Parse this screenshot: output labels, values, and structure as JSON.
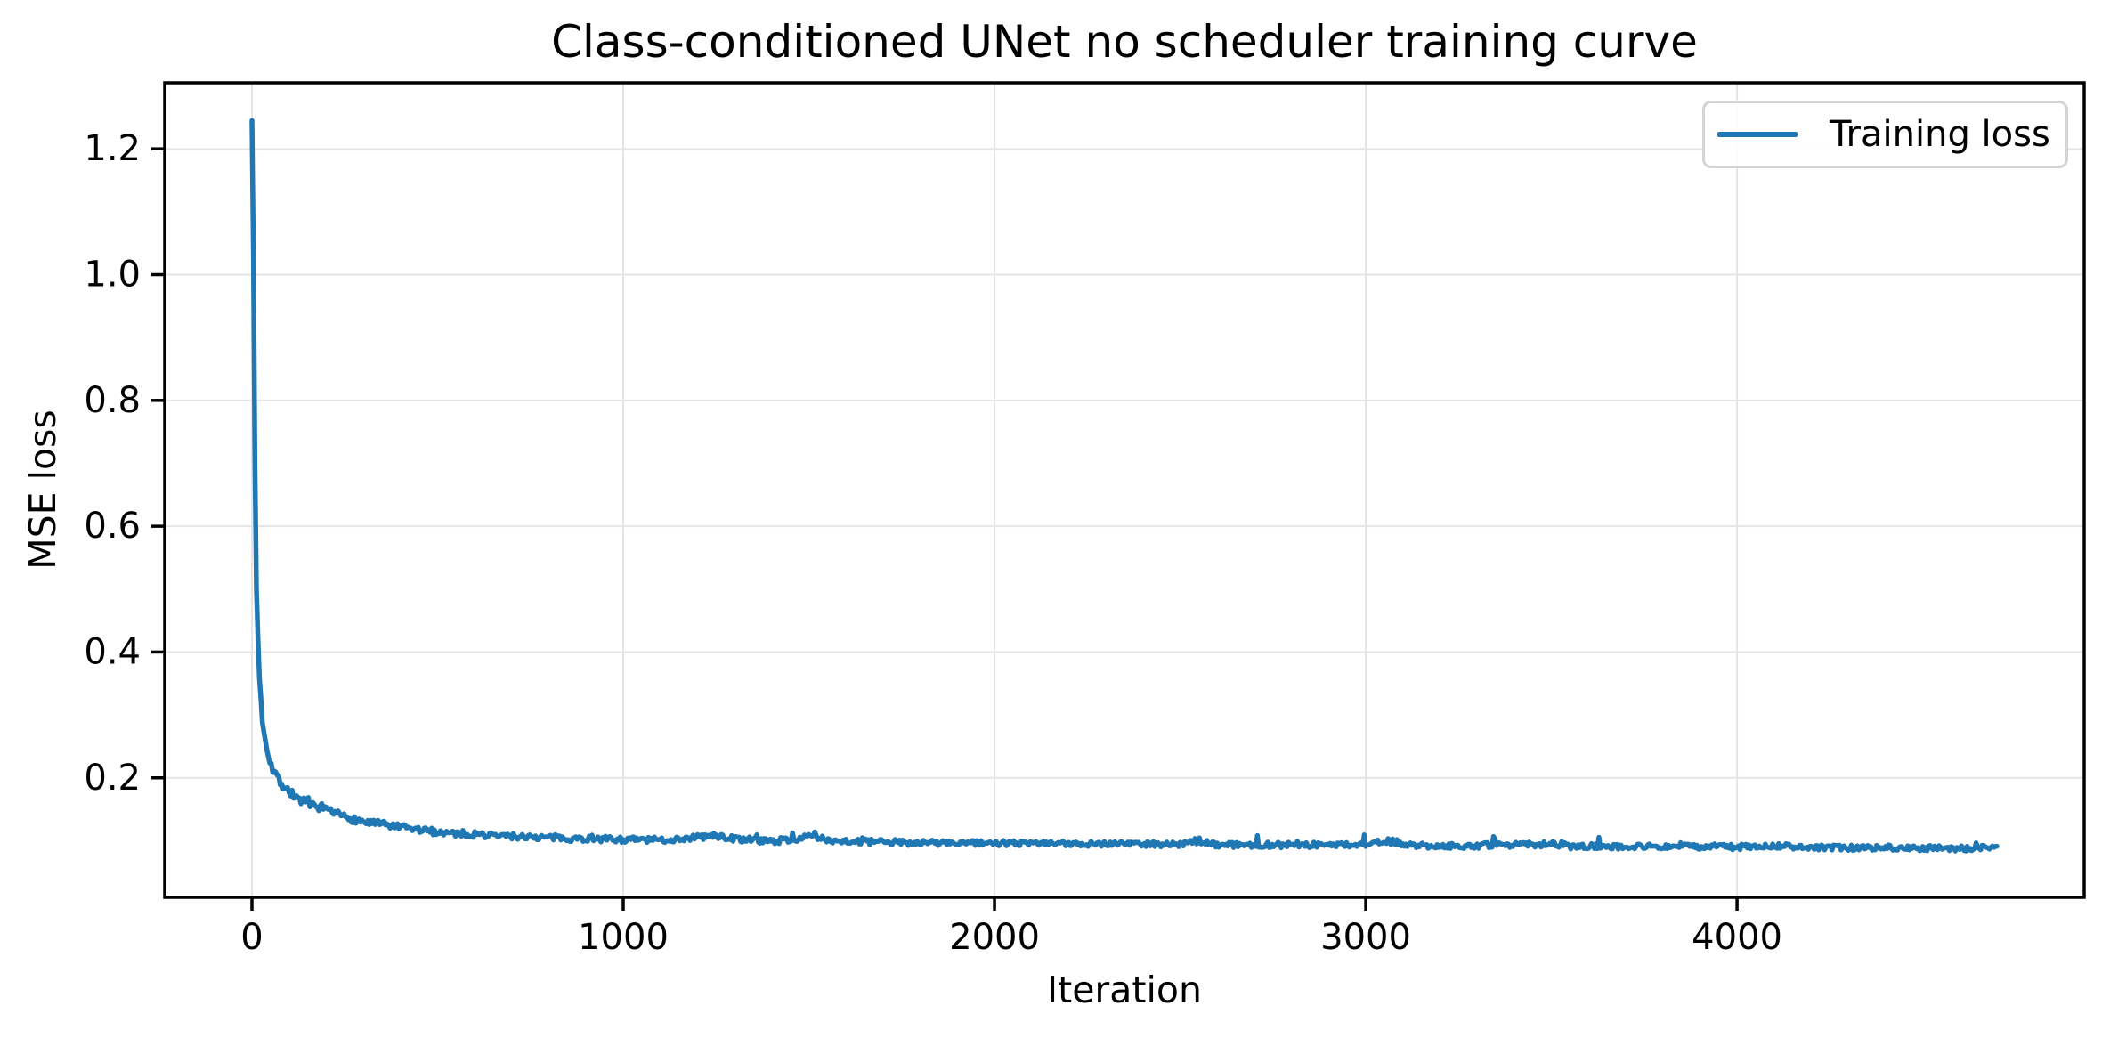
{
  "chart_data": {
    "type": "line",
    "title": "Class-conditioned UNet no scheduler training curve",
    "xlabel": "Iteration",
    "ylabel": "MSE loss",
    "grid": true,
    "legend": {
      "position": "upper right",
      "entries": [
        {
          "label": "Training loss",
          "color": "#1f77b4"
        }
      ]
    },
    "xlim": [
      -235,
      4935
    ],
    "ylim": [
      0.01,
      1.305
    ],
    "x_ticks": [
      0,
      1000,
      2000,
      3000,
      4000
    ],
    "x_tick_labels": [
      "0",
      "1000",
      "2000",
      "3000",
      "4000"
    ],
    "y_ticks": [
      0.2,
      0.4,
      0.6,
      0.8,
      1.0,
      1.2
    ],
    "y_tick_labels": [
      "0.2",
      "0.4",
      "0.6",
      "0.8",
      "1.0",
      "1.2"
    ],
    "colors": {
      "line": "#1f77b4",
      "grid": "#e5e5e5",
      "spine": "#000000",
      "text": "#000000",
      "legend_border": "#d4d4d4"
    },
    "series": [
      {
        "name": "Training loss",
        "color": "#1f77b4",
        "x_start": 0,
        "x_end": 4700,
        "x_step": 4,
        "initial_loss": 1.245,
        "final_loss": 0.089,
        "trend_anchors": [
          [
            0,
            1.245
          ],
          [
            3,
            1.1
          ],
          [
            5,
            0.95
          ],
          [
            7,
            0.78
          ],
          [
            9,
            0.62
          ],
          [
            12,
            0.5
          ],
          [
            15,
            0.44
          ],
          [
            20,
            0.36
          ],
          [
            25,
            0.31
          ],
          [
            30,
            0.285
          ],
          [
            40,
            0.25
          ],
          [
            50,
            0.225
          ],
          [
            60,
            0.21
          ],
          [
            75,
            0.195
          ],
          [
            90,
            0.185
          ],
          [
            110,
            0.173
          ],
          [
            130,
            0.165
          ],
          [
            160,
            0.155
          ],
          [
            200,
            0.147
          ],
          [
            250,
            0.138
          ],
          [
            300,
            0.13
          ],
          [
            350,
            0.126
          ],
          [
            400,
            0.121
          ],
          [
            450,
            0.117
          ],
          [
            500,
            0.114
          ],
          [
            600,
            0.11
          ],
          [
            700,
            0.107
          ],
          [
            800,
            0.105
          ],
          [
            900,
            0.103
          ],
          [
            1000,
            0.102
          ],
          [
            1100,
            0.101
          ],
          [
            1150,
            0.103
          ],
          [
            1250,
            0.108
          ],
          [
            1300,
            0.103
          ],
          [
            1400,
            0.099
          ],
          [
            1450,
            0.102
          ],
          [
            1500,
            0.106
          ],
          [
            1560,
            0.101
          ],
          [
            1650,
            0.098
          ],
          [
            1800,
            0.097
          ],
          [
            2000,
            0.096
          ],
          [
            2200,
            0.095
          ],
          [
            2350,
            0.096
          ],
          [
            2500,
            0.094
          ],
          [
            2550,
            0.1
          ],
          [
            2600,
            0.094
          ],
          [
            2800,
            0.093
          ],
          [
            3000,
            0.094
          ],
          [
            3060,
            0.099
          ],
          [
            3150,
            0.092
          ],
          [
            3300,
            0.092
          ],
          [
            3500,
            0.095
          ],
          [
            3550,
            0.091
          ],
          [
            3800,
            0.091
          ],
          [
            4000,
            0.09
          ],
          [
            4100,
            0.092
          ],
          [
            4200,
            0.089
          ],
          [
            4400,
            0.089
          ],
          [
            4600,
            0.088
          ],
          [
            4700,
            0.089
          ]
        ],
        "noise": {
          "seed": 7,
          "amplitude": 0.0045,
          "spike_probability": 0.02,
          "spike_max": 0.013,
          "steep_threshold": 0.35,
          "steep_factor": 0.3,
          "broaden_ref": 0.09,
          "broaden_gain": 8
        }
      }
    ]
  }
}
